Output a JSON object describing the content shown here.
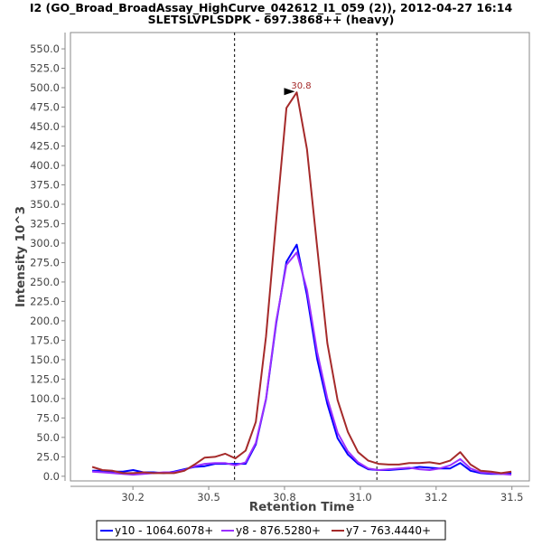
{
  "chart_data": {
    "type": "line",
    "title": "I2 (GO_Broad_BroadAssay_HighCurve_042612_I1_059 (2)), 2012-04-27 16:14",
    "subtitle": "SLETSLVPLSDPK - 697.3868++ (heavy)",
    "xlabel": "Retention Time",
    "ylabel": "Intensity 10^3",
    "xlim": [
      29.985,
      31.565
    ],
    "ylim": [
      -6,
      571
    ],
    "grid": false,
    "legend_position": "bottom",
    "x_ticks": [
      {
        "value": 30.2,
        "label": "30.2"
      },
      {
        "value": 30.461,
        "label": "30.5"
      },
      {
        "value": 30.722,
        "label": "30.8"
      },
      {
        "value": 30.983,
        "label": "31.0"
      },
      {
        "value": 31.244,
        "label": "31.2"
      },
      {
        "value": 31.505,
        "label": "31.5"
      }
    ],
    "y_ticks": [
      0,
      25,
      50,
      75,
      100,
      125,
      150,
      175,
      200,
      225,
      250,
      275,
      300,
      325,
      350,
      375,
      400,
      425,
      450,
      475,
      500,
      525,
      550
    ],
    "y_tick_labels": [
      "0.0",
      "25.0",
      "50.0",
      "75.0",
      "100.0",
      "125.0",
      "150.0",
      "175.0",
      "200.0",
      "225.0",
      "250.0",
      "275.0",
      "300.0",
      "325.0",
      "350.0",
      "375.0",
      "400.0",
      "425.0",
      "450.0",
      "475.0",
      "500.0",
      "525.0",
      "550.0"
    ],
    "x_start": 30.06,
    "x_step": 0.0352,
    "boundaries": [
      30.55,
      31.04
    ],
    "peak_annotation": {
      "x": 30.764,
      "y": 494,
      "label": "30.8",
      "color": "#a52a2a"
    },
    "series": [
      {
        "name": "y10 - 1064.6078+",
        "color": "#0000ff",
        "values": [
          7,
          7,
          6,
          6,
          8,
          5,
          5,
          4,
          6,
          9,
          12,
          13,
          16,
          16,
          16,
          16,
          41,
          99,
          197,
          276,
          298,
          233,
          151,
          93,
          49,
          28,
          16,
          9,
          8,
          8,
          9,
          10,
          12,
          11,
          10,
          10,
          17,
          7,
          4,
          3,
          3,
          4
        ]
      },
      {
        "name": "y8 - 876.5280+",
        "color": "#9b30ff",
        "values": [
          6,
          5,
          4,
          3,
          2,
          3,
          4,
          5,
          5,
          8,
          13,
          16,
          17,
          17,
          14,
          18,
          43,
          100,
          200,
          272,
          288,
          240,
          160,
          100,
          56,
          32,
          18,
          10,
          8,
          9,
          10,
          11,
          9,
          8,
          10,
          14,
          22,
          10,
          5,
          4,
          3,
          2
        ]
      },
      {
        "name": "y7 - 763.4440+",
        "color": "#a52a2a",
        "values": [
          12,
          8,
          7,
          4,
          4,
          5,
          4,
          4,
          4,
          7,
          15,
          24,
          25,
          29,
          23,
          33,
          70,
          180,
          330,
          474,
          494,
          421,
          295,
          171,
          98,
          57,
          31,
          20,
          16,
          15,
          15,
          17,
          17,
          18,
          16,
          20,
          31,
          15,
          7,
          6,
          4,
          6
        ]
      }
    ]
  }
}
